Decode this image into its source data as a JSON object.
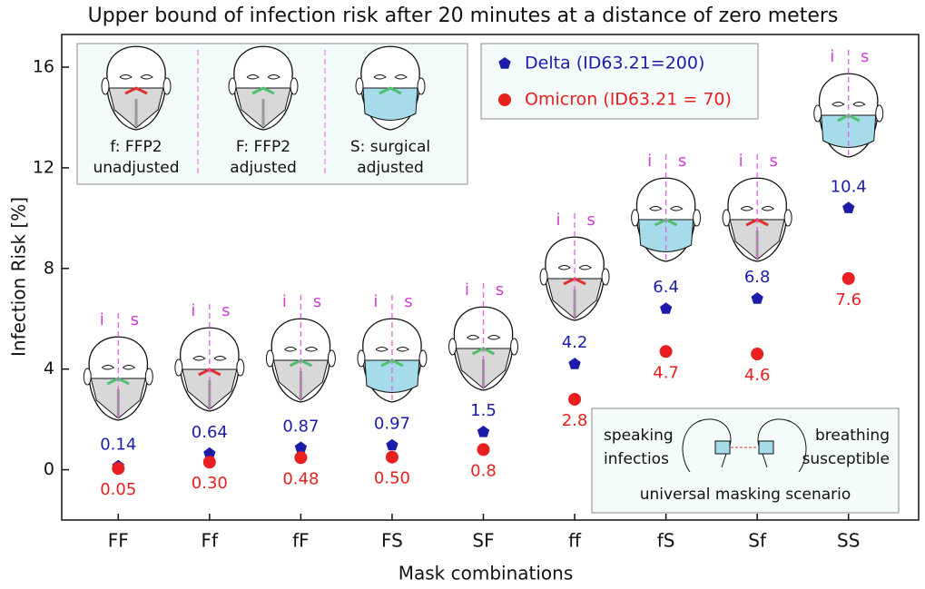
{
  "chart_data": {
    "type": "scatter",
    "title": "Upper bound of infection risk after 20 minutes at a distance of zero meters",
    "xlabel": "Mask combinations",
    "ylabel": "Infection Risk  [%]",
    "categories": [
      "FF",
      "Ff",
      "fF",
      "FS",
      "SF",
      "ff",
      "fS",
      "Sf",
      "SS"
    ],
    "series": [
      {
        "name": "Delta (ID63.21=200)",
        "color": "#1c1ca8",
        "marker": "pentagon",
        "values": [
          0.14,
          0.64,
          0.87,
          0.97,
          1.5,
          4.2,
          6.4,
          6.8,
          10.4
        ]
      },
      {
        "name": "Omicron (ID63.21 = 70)",
        "color": "#e82020",
        "marker": "circle",
        "values": [
          0.05,
          0.3,
          0.48,
          0.5,
          0.8,
          2.8,
          4.7,
          4.6,
          7.6
        ],
        "value_labels": [
          "0.05",
          "0.30",
          "0.48",
          "0.50",
          "0.8",
          "2.8",
          "4.7",
          "4.6",
          "7.6"
        ]
      }
    ],
    "ylim": [
      -2,
      17.3
    ],
    "yticks": [
      0,
      4,
      8,
      12,
      16
    ],
    "mask_key": [
      "f: FFP2",
      "unadjusted",
      "F: FFP2",
      "adjusted",
      "S: surgical",
      "adjusted"
    ],
    "face_labels": [
      "i",
      "s"
    ],
    "scenario": {
      "left": [
        "speaking",
        "infectios"
      ],
      "right": [
        "breathing",
        "susceptible"
      ],
      "caption": "universal masking scenario"
    }
  }
}
